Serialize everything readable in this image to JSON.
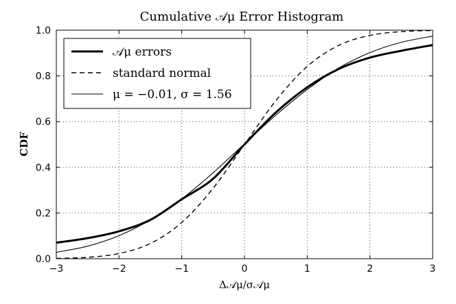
{
  "chart_data": {
    "type": "line",
    "title": "Cumulative 𝒜μ Error Histogram",
    "xlabel": "Δ𝒜μ/σ𝒜μ",
    "ylabel": "CDF",
    "xlim": [
      -3,
      3
    ],
    "ylim": [
      0.0,
      1.0
    ],
    "xticks": [
      "−3",
      "−2",
      "−1",
      "0",
      "1",
      "2",
      "3"
    ],
    "yticks": [
      "0.0",
      "0.2",
      "0.4",
      "0.6",
      "0.8",
      "1.0"
    ],
    "grid": true,
    "legend_position": "top-left",
    "series": [
      {
        "name": "𝒜μ errors",
        "style": "thick-solid",
        "x": [
          -3,
          -2.5,
          -2,
          -1.5,
          -1,
          -0.5,
          0,
          0.5,
          1,
          1.5,
          2,
          2.5,
          3
        ],
        "y": [
          0.07,
          0.09,
          0.12,
          0.17,
          0.26,
          0.35,
          0.5,
          0.64,
          0.75,
          0.83,
          0.88,
          0.91,
          0.935
        ]
      },
      {
        "name": "standard normal",
        "style": "dashed",
        "x": [
          -3,
          -2.5,
          -2,
          -1.5,
          -1,
          -0.5,
          0,
          0.5,
          1,
          1.5,
          2,
          2.5,
          3
        ],
        "y": [
          0.0013,
          0.0062,
          0.0228,
          0.0668,
          0.1587,
          0.3085,
          0.5,
          0.6915,
          0.8413,
          0.9332,
          0.9772,
          0.9938,
          0.9987
        ]
      },
      {
        "name": "μ = −0.01, σ = 1.56",
        "style": "thin-solid",
        "x": [
          -3,
          -2.5,
          -2,
          -1.5,
          -1,
          -0.5,
          0,
          0.5,
          1,
          1.5,
          2,
          2.5,
          3
        ],
        "y": [
          0.028,
          0.055,
          0.101,
          0.17,
          0.262,
          0.376,
          0.503,
          0.628,
          0.74,
          0.834,
          0.902,
          0.947,
          0.974
        ]
      }
    ]
  }
}
